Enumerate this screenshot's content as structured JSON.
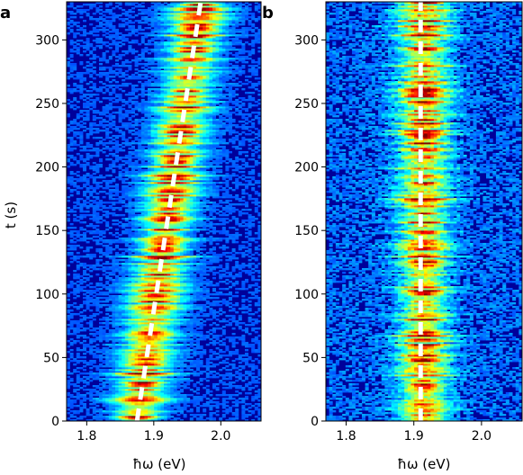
{
  "chart_data": [
    {
      "type": "heatmap",
      "panel_label": "a",
      "xlabel": "ħω (eV)",
      "ylabel": "t (s)",
      "xlim": [
        1.77,
        2.06
      ],
      "ylim": [
        0,
        330
      ],
      "x_ticks": [
        1.8,
        1.9,
        2.0
      ],
      "x_tick_labels": [
        "1.8",
        "1.9",
        "2.0"
      ],
      "y_ticks": [
        0,
        50,
        100,
        150,
        200,
        250,
        300
      ],
      "y_tick_labels": [
        "0",
        "50",
        "100",
        "150",
        "200",
        "250",
        "300"
      ],
      "colormap": "jet",
      "guide_line": {
        "style": "dashed",
        "color": "#ffffff",
        "x": [
          1.875,
          1.97
        ],
        "y": [
          0,
          330
        ]
      },
      "peak_center": {
        "t": [
          0,
          330
        ],
        "energy": [
          1.875,
          1.97
        ]
      }
    },
    {
      "type": "heatmap",
      "panel_label": "b",
      "xlabel": "ħω (eV)",
      "ylabel": "",
      "xlim": [
        1.77,
        2.06
      ],
      "ylim": [
        0,
        330
      ],
      "x_ticks": [
        1.8,
        1.9,
        2.0
      ],
      "x_tick_labels": [
        "1.8",
        "1.9",
        "2.0"
      ],
      "y_ticks": [
        0,
        50,
        100,
        150,
        200,
        250,
        300
      ],
      "y_tick_labels": [
        "0",
        "50",
        "100",
        "150",
        "200",
        "250",
        "300"
      ],
      "colormap": "jet",
      "guide_line": {
        "style": "dashed",
        "color": "#ffffff",
        "x": [
          1.91,
          1.91
        ],
        "y": [
          0,
          330
        ]
      },
      "peak_center": {
        "t": [
          0,
          330
        ],
        "energy": [
          1.915,
          1.915
        ]
      }
    }
  ],
  "colors": {
    "background": "#00008b",
    "line": "#ffffff"
  }
}
